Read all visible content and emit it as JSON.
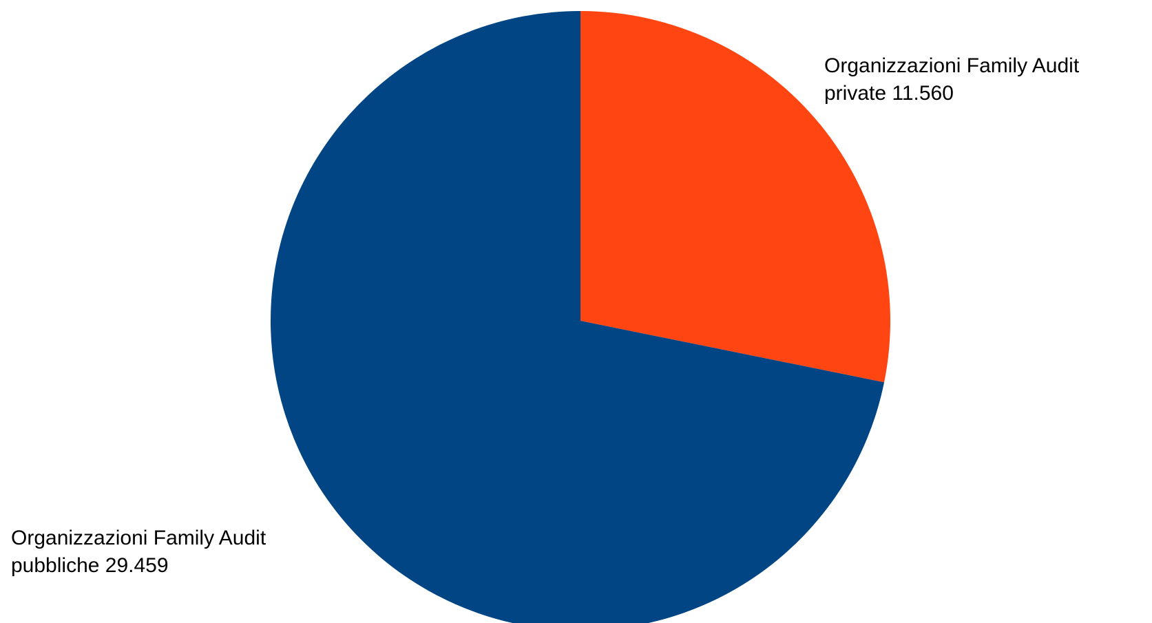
{
  "chart_data": {
    "type": "pie",
    "title": "",
    "start_angle_deg": 0,
    "direction": "clockwise",
    "slices": [
      {
        "name_line1": "Organizzazioni Family Audit",
        "name_line2": "private",
        "value": 11560,
        "value_label": "11.560",
        "color": "#ff4511"
      },
      {
        "name_line1": "Organizzazioni Family Audit",
        "name_line2": "pubbliche",
        "value": 29459,
        "value_label": "29.459",
        "color": "#014584"
      }
    ],
    "legend": "none",
    "data_labels": "outside"
  }
}
